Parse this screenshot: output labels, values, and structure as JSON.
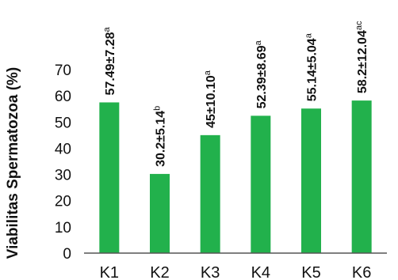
{
  "chart_data": {
    "type": "bar",
    "categories": [
      "K1",
      "K2",
      "K3",
      "K4",
      "K5",
      "K6"
    ],
    "values": [
      57.49,
      30.2,
      45,
      52.39,
      55.14,
      58.2
    ],
    "data_labels": [
      {
        "text": "57.49±7.28",
        "sup": "a"
      },
      {
        "text": "30.2±5.14",
        "sup": "b"
      },
      {
        "text": "45±10.10",
        "sup": "a"
      },
      {
        "text": "52.39±8.69",
        "sup": "a"
      },
      {
        "text": "55.14±5.04",
        "sup": "a"
      },
      {
        "text": "58.2±12.04",
        "sup": "ac"
      }
    ],
    "ylabel": "Viabilitas Spermatozoa (%)",
    "xlabel": "",
    "ylim": [
      0,
      70
    ],
    "yticks": [
      0,
      10,
      20,
      30,
      40,
      50,
      60,
      70
    ],
    "grid": false,
    "bar_color": "#22b14c",
    "axis_color": "#555555"
  }
}
